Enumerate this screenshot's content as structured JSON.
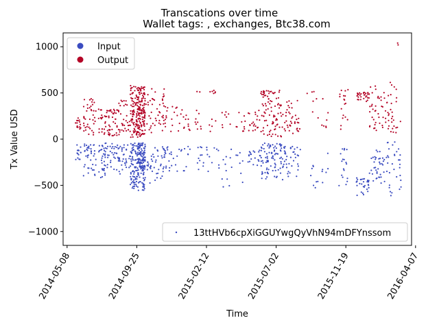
{
  "chart_data": {
    "type": "scatter",
    "title": "Transcations over time",
    "subtitle": "Wallet tags: , exchanges, Btc38.com",
    "xlabel": "Time",
    "ylabel": "Tx Value USD",
    "xlim": [
      "2014-04-30",
      "2016-03-30"
    ],
    "ylim": [
      -1150,
      1150
    ],
    "x_ticks": [
      "2014-05-08",
      "2014-09-25",
      "2015-02-12",
      "2015-07-02",
      "2015-11-19",
      "2016-04-07"
    ],
    "y_ticks": [
      -1000,
      -500,
      0,
      500,
      1000
    ],
    "legend_top": {
      "position": "top-left",
      "entries": [
        {
          "label": "Input",
          "color": "#3b4cc0"
        },
        {
          "label": "Output",
          "color": "#b40426"
        }
      ]
    },
    "legend_bottom": {
      "position": "bottom-right",
      "entries": [
        {
          "label": "13ttHVb6cpXiGGUYwgQyVhN94mDFYnssom",
          "color": "#3b4cc0"
        }
      ]
    },
    "series": [
      {
        "name": "Input",
        "color": "#3b4cc0",
        "clusters": [
          {
            "start": "2014-05-25",
            "end": "2014-06-05",
            "count": 14,
            "min": -260,
            "max": -60
          },
          {
            "start": "2014-06-10",
            "end": "2014-07-05",
            "count": 40,
            "min": -450,
            "max": -50
          },
          {
            "start": "2014-07-10",
            "end": "2014-08-15",
            "count": 60,
            "min": -420,
            "max": -40
          },
          {
            "start": "2014-08-15",
            "end": "2014-09-12",
            "count": 40,
            "min": -380,
            "max": -60
          },
          {
            "start": "2014-09-12",
            "end": "2014-09-25",
            "count": 70,
            "min": -540,
            "max": -40
          },
          {
            "start": "2014-09-25",
            "end": "2014-10-12",
            "count": 150,
            "min": -560,
            "max": -40
          },
          {
            "start": "2014-10-12",
            "end": "2014-11-20",
            "count": 45,
            "min": -480,
            "max": -60
          },
          {
            "start": "2014-11-20",
            "end": "2015-01-10",
            "count": 30,
            "min": -360,
            "max": -80
          },
          {
            "start": "2015-01-20",
            "end": "2015-03-10",
            "count": 22,
            "min": -360,
            "max": -80
          },
          {
            "start": "2015-03-15",
            "end": "2015-05-01",
            "count": 18,
            "min": -540,
            "max": -80
          },
          {
            "start": "2015-05-05",
            "end": "2015-06-01",
            "count": 20,
            "min": -300,
            "max": -120
          },
          {
            "start": "2015-06-01",
            "end": "2015-07-15",
            "count": 90,
            "min": -440,
            "max": -40
          },
          {
            "start": "2015-07-15",
            "end": "2015-08-20",
            "count": 40,
            "min": -420,
            "max": -80
          },
          {
            "start": "2015-09-01",
            "end": "2015-10-15",
            "count": 14,
            "min": -530,
            "max": -140
          },
          {
            "start": "2015-11-05",
            "end": "2015-11-25",
            "count": 18,
            "min": -540,
            "max": -90
          },
          {
            "start": "2015-12-10",
            "end": "2016-01-05",
            "count": 30,
            "min": -620,
            "max": -420
          },
          {
            "start": "2016-01-05",
            "end": "2016-02-10",
            "count": 40,
            "min": -480,
            "max": -120
          },
          {
            "start": "2016-02-10",
            "end": "2016-03-10",
            "count": 30,
            "min": -620,
            "max": -30
          }
        ]
      },
      {
        "name": "Output",
        "color": "#b40426",
        "clusters": [
          {
            "start": "2014-05-25",
            "end": "2014-06-05",
            "count": 14,
            "min": 80,
            "max": 240
          },
          {
            "start": "2014-06-10",
            "end": "2014-07-05",
            "count": 40,
            "min": 30,
            "max": 440
          },
          {
            "start": "2014-07-10",
            "end": "2014-08-15",
            "count": 60,
            "min": 30,
            "max": 340
          },
          {
            "start": "2014-08-15",
            "end": "2014-09-12",
            "count": 40,
            "min": 40,
            "max": 420
          },
          {
            "start": "2014-09-12",
            "end": "2014-09-25",
            "count": 70,
            "min": 20,
            "max": 580
          },
          {
            "start": "2014-09-25",
            "end": "2014-10-12",
            "count": 150,
            "min": 20,
            "max": 570
          },
          {
            "start": "2014-10-12",
            "end": "2014-11-20",
            "count": 45,
            "min": 60,
            "max": 550
          },
          {
            "start": "2014-11-20",
            "end": "2015-01-10",
            "count": 30,
            "min": 80,
            "max": 380
          },
          {
            "start": "2015-01-20",
            "end": "2015-03-10",
            "count": 22,
            "min": 80,
            "max": 540
          },
          {
            "start": "2015-03-15",
            "end": "2015-05-01",
            "count": 18,
            "min": 80,
            "max": 300
          },
          {
            "start": "2015-05-05",
            "end": "2015-06-01",
            "count": 20,
            "min": 90,
            "max": 320
          },
          {
            "start": "2015-06-01",
            "end": "2015-07-15",
            "count": 90,
            "min": 20,
            "max": 530
          },
          {
            "start": "2015-07-15",
            "end": "2015-08-20",
            "count": 40,
            "min": 60,
            "max": 420
          },
          {
            "start": "2015-09-01",
            "end": "2015-10-15",
            "count": 14,
            "min": 120,
            "max": 540
          },
          {
            "start": "2015-11-05",
            "end": "2015-11-25",
            "count": 18,
            "min": 80,
            "max": 550
          },
          {
            "start": "2015-12-10",
            "end": "2016-01-05",
            "count": 30,
            "min": 400,
            "max": 520
          },
          {
            "start": "2016-01-05",
            "end": "2016-02-10",
            "count": 40,
            "min": 80,
            "max": 580
          },
          {
            "start": "2016-02-10",
            "end": "2016-03-10",
            "count": 30,
            "min": 60,
            "max": 620
          }
        ],
        "extra_points": [
          {
            "x": "2016-03-02",
            "y": 1040
          },
          {
            "x": "2016-03-03",
            "y": 1020
          }
        ]
      }
    ]
  }
}
